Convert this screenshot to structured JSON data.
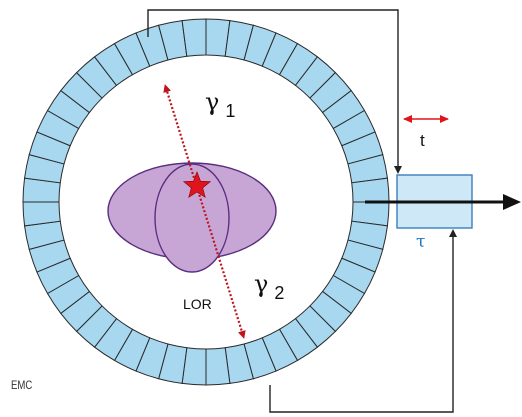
{
  "labels": {
    "gamma1_symbol": "γ",
    "gamma1_index": "1",
    "gamma2_symbol": "γ",
    "gamma2_index": "2",
    "lor": "LOR",
    "t": "t",
    "tau": "τ",
    "credit": "EMC"
  },
  "ring": {
    "detector_count": 48
  },
  "colors": {
    "detector_fill": "#a8d8f0",
    "detector_stroke": "#2a2a2a",
    "body_fill": "#c7a6d6",
    "body_stroke": "#5a2e7e",
    "lor_line": "#c0141c",
    "annihilation_star": "#e0141c",
    "timing_arrow": "#e0141c",
    "coincidence_box_fill": "#cfe8f8",
    "coincidence_box_stroke": "#3a7fbf",
    "tau_text": "#1a78c2",
    "wires": "#222222"
  }
}
